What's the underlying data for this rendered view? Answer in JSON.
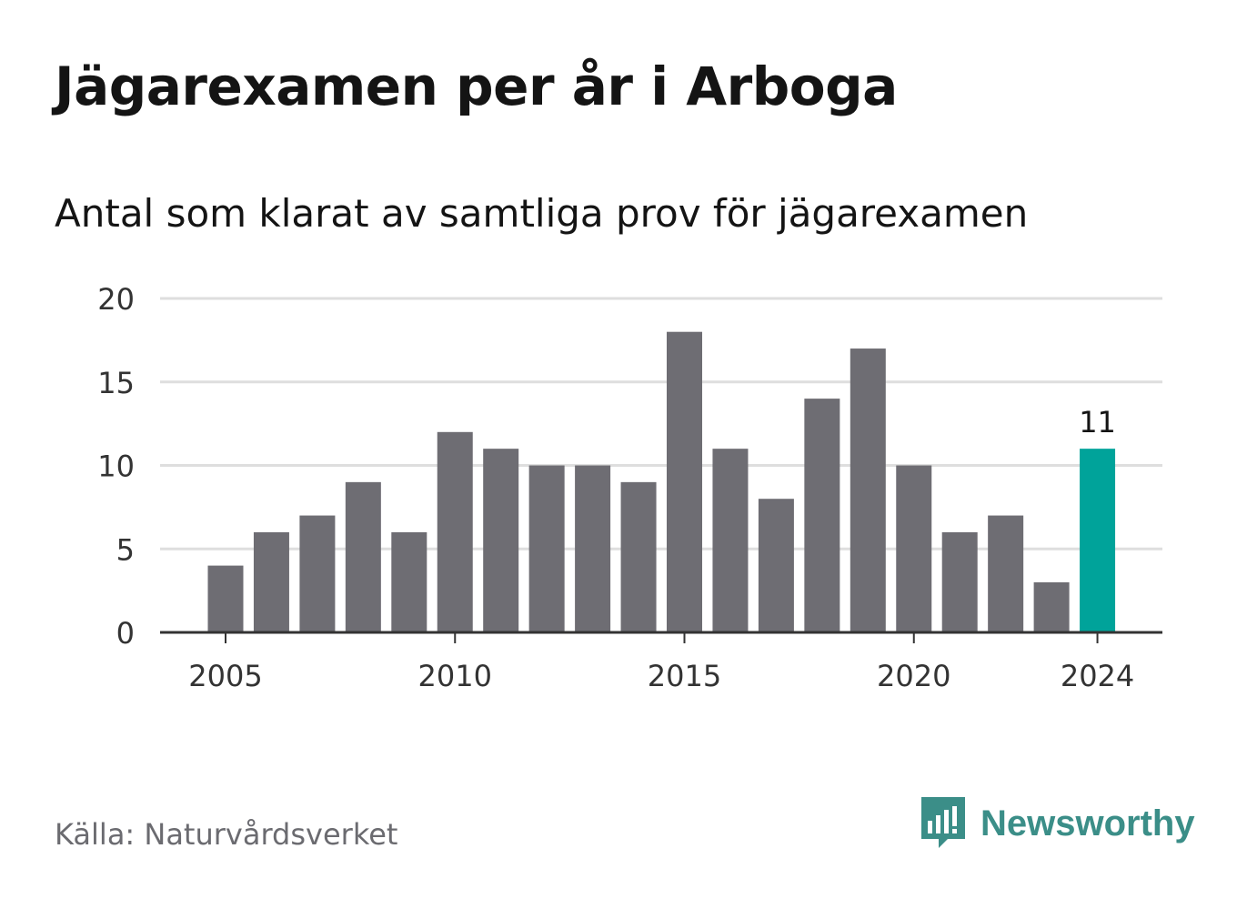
{
  "title": "Jägarexamen per år i Arboga",
  "subtitle": "Antal som klarat av samtliga prov för jägarexamen",
  "source": "Källa: Naturvårdsverket",
  "brand": {
    "name": "Newsworthy",
    "color": "#3b8e88",
    "icon": "newsworthy-logo-icon"
  },
  "chart_data": {
    "type": "bar",
    "title": "Jägarexamen per år i Arboga",
    "subtitle": "Antal som klarat av samtliga prov för jägarexamen",
    "xlabel": "",
    "ylabel": "",
    "x": [
      2005,
      2006,
      2007,
      2008,
      2009,
      2010,
      2011,
      2012,
      2013,
      2014,
      2015,
      2016,
      2017,
      2018,
      2019,
      2020,
      2021,
      2022,
      2023,
      2024
    ],
    "values": [
      4,
      6,
      7,
      9,
      6,
      12,
      11,
      10,
      10,
      9,
      18,
      11,
      8,
      14,
      17,
      10,
      6,
      7,
      3,
      11
    ],
    "ylim": [
      0,
      20
    ],
    "y_ticks": [
      "0",
      "5",
      "10",
      "15",
      "20"
    ],
    "x_ticks": [
      "2005",
      "2010",
      "2015",
      "2020",
      "2024"
    ],
    "highlight": {
      "x": 2024,
      "label": "11"
    },
    "grid": true,
    "legend": "none",
    "colors": {
      "bar": "#6e6d73",
      "highlight": "#00a39a",
      "grid": "#dedede",
      "axis": "#333333"
    }
  }
}
